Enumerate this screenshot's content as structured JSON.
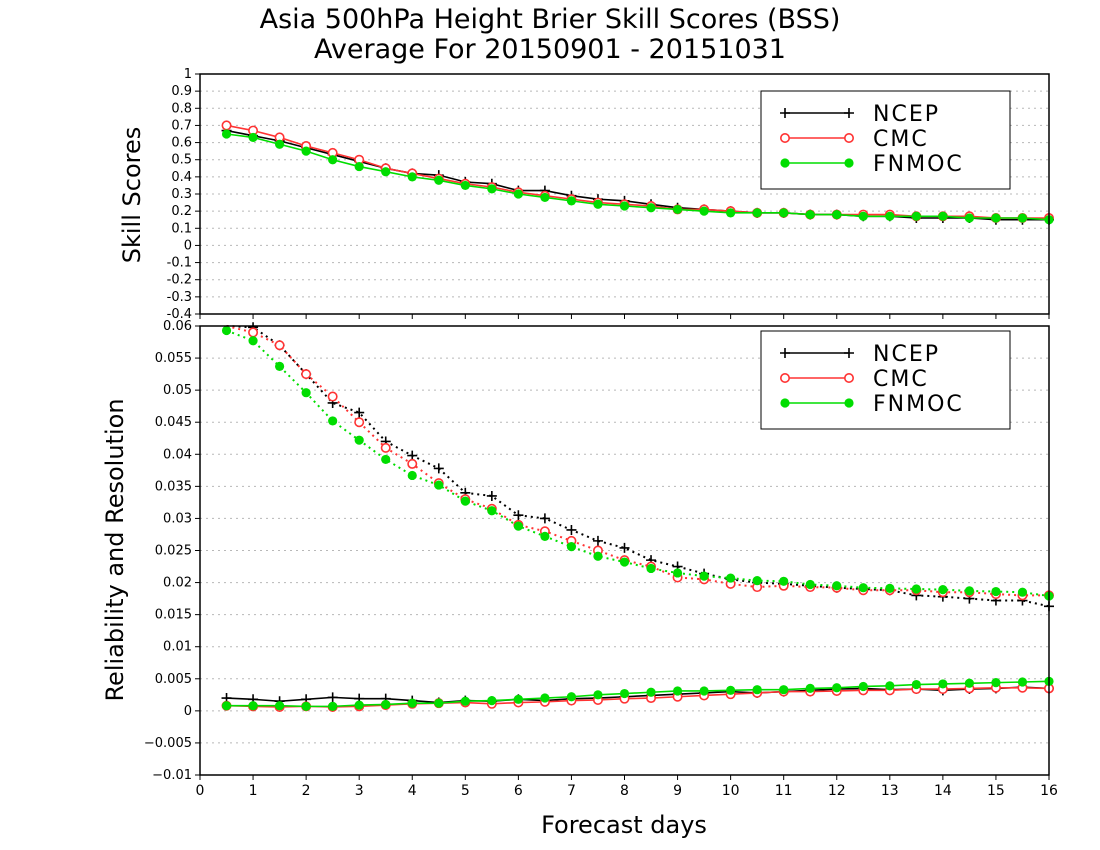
{
  "title": "Asia 500hPa Height Brier Skill Scores (BSS)",
  "subtitle": "Average For 20150901 - 20151031",
  "xlabel": "Forecast days",
  "legend_labels": [
    "NCEP",
    "CMC",
    "FNMOC"
  ],
  "colors": {
    "NCEP": "#000000",
    "CMC": "#ff3333",
    "FNMOC": "#00dd00"
  },
  "chart_data": [
    {
      "type": "line",
      "ylabel": "Skill Scores",
      "xlim": [
        0,
        16
      ],
      "ylim": [
        -0.4,
        1
      ],
      "xticks": [
        "0",
        "1",
        "2",
        "3",
        "4",
        "5",
        "6",
        "7",
        "8",
        "9",
        "10",
        "11",
        "12",
        "13",
        "14",
        "15",
        "16"
      ],
      "yticks": [
        "-0.4",
        "-0.3",
        "-0.2",
        "-0.1",
        "0",
        "0.1",
        "0.2",
        "0.3",
        "0.4",
        "0.5",
        "0.6",
        "0.7",
        "0.8",
        "0.9",
        "1"
      ],
      "grid": true,
      "legend_position": "top-right",
      "x": [
        0.5,
        1,
        1.5,
        2,
        2.5,
        3,
        3.5,
        4,
        4.5,
        5,
        5.5,
        6,
        6.5,
        7,
        7.5,
        8,
        8.5,
        9,
        9.5,
        10,
        10.5,
        11,
        11.5,
        12,
        12.5,
        13,
        13.5,
        14,
        14.5,
        15,
        15.5,
        16
      ],
      "series": [
        {
          "name": "NCEP",
          "marker": "plus",
          "values": [
            0.67,
            0.64,
            0.61,
            0.57,
            0.53,
            0.49,
            0.45,
            0.42,
            0.41,
            0.37,
            0.36,
            0.32,
            0.32,
            0.29,
            0.27,
            0.26,
            0.24,
            0.22,
            0.21,
            0.2,
            0.19,
            0.19,
            0.18,
            0.18,
            0.17,
            0.17,
            0.16,
            0.16,
            0.16,
            0.15,
            0.15,
            0.15
          ]
        },
        {
          "name": "CMC",
          "marker": "open-circle",
          "values": [
            0.7,
            0.67,
            0.63,
            0.58,
            0.54,
            0.5,
            0.45,
            0.42,
            0.39,
            0.36,
            0.34,
            0.31,
            0.29,
            0.27,
            0.25,
            0.24,
            0.23,
            0.21,
            0.21,
            0.2,
            0.19,
            0.19,
            0.18,
            0.18,
            0.18,
            0.18,
            0.17,
            0.17,
            0.17,
            0.16,
            0.16,
            0.16
          ]
        },
        {
          "name": "FNMOC",
          "marker": "filled-circle",
          "values": [
            0.65,
            0.63,
            0.59,
            0.55,
            0.5,
            0.46,
            0.43,
            0.4,
            0.38,
            0.35,
            0.33,
            0.3,
            0.28,
            0.26,
            0.24,
            0.23,
            0.22,
            0.21,
            0.2,
            0.19,
            0.19,
            0.19,
            0.18,
            0.18,
            0.17,
            0.17,
            0.17,
            0.17,
            0.16,
            0.16,
            0.16,
            0.15
          ]
        }
      ]
    },
    {
      "type": "line",
      "ylabel": "Reliability and Resolution",
      "xlim": [
        0,
        16
      ],
      "ylim": [
        -0.01,
        0.06
      ],
      "xticks": [
        "0",
        "1",
        "2",
        "3",
        "4",
        "5",
        "6",
        "7",
        "8",
        "9",
        "10",
        "11",
        "12",
        "13",
        "14",
        "15",
        "16"
      ],
      "yticks": [
        "−0.01",
        "−0.005",
        "0",
        "0.005",
        "0.01",
        "0.015",
        "0.02",
        "0.025",
        "0.03",
        "0.035",
        "0.04",
        "0.045",
        "0.05",
        "0.055",
        "0.06"
      ],
      "grid": true,
      "legend_position": "top-right",
      "x": [
        0.5,
        1,
        1.5,
        2,
        2.5,
        3,
        3.5,
        4,
        4.5,
        5,
        5.5,
        6,
        6.5,
        7,
        7.5,
        8,
        8.5,
        9,
        9.5,
        10,
        10.5,
        11,
        11.5,
        12,
        12.5,
        13,
        13.5,
        14,
        14.5,
        15,
        15.5,
        16
      ],
      "series": [
        {
          "name": "NCEP",
          "component": "resolution",
          "line": "dotted",
          "marker": "plus",
          "values": [
            0.0615,
            0.0598,
            0.057,
            0.0525,
            0.048,
            0.0465,
            0.042,
            0.0398,
            0.0378,
            0.034,
            0.0335,
            0.0305,
            0.03,
            0.0282,
            0.0265,
            0.0254,
            0.0235,
            0.0225,
            0.0214,
            0.0205,
            0.02,
            0.0198,
            0.0195,
            0.0192,
            0.019,
            0.0188,
            0.018,
            0.0178,
            0.0175,
            0.0172,
            0.0172,
            0.0163
          ]
        },
        {
          "name": "CMC",
          "component": "resolution",
          "line": "dotted",
          "marker": "open-circle",
          "values": [
            0.0612,
            0.059,
            0.057,
            0.0525,
            0.049,
            0.045,
            0.041,
            0.0385,
            0.0355,
            0.033,
            0.0315,
            0.029,
            0.028,
            0.0265,
            0.025,
            0.0235,
            0.0225,
            0.0208,
            0.0205,
            0.0198,
            0.0193,
            0.0195,
            0.0193,
            0.0192,
            0.0188,
            0.0188,
            0.0188,
            0.0185,
            0.0185,
            0.0182,
            0.018,
            0.018
          ]
        },
        {
          "name": "FNMOC",
          "component": "resolution",
          "line": "dotted",
          "marker": "filled-circle",
          "values": [
            0.0593,
            0.0577,
            0.0537,
            0.0496,
            0.0452,
            0.0422,
            0.0392,
            0.0367,
            0.0352,
            0.0327,
            0.0312,
            0.0288,
            0.0272,
            0.0256,
            0.0241,
            0.0232,
            0.0222,
            0.0215,
            0.021,
            0.0207,
            0.0203,
            0.0202,
            0.0197,
            0.0195,
            0.0192,
            0.0191,
            0.019,
            0.0189,
            0.0187,
            0.0186,
            0.0185,
            0.0179
          ]
        },
        {
          "name": "NCEP",
          "component": "reliability",
          "line": "solid",
          "marker": "plus",
          "values": [
            0.002,
            0.0018,
            0.0015,
            0.0018,
            0.0021,
            0.0019,
            0.0019,
            0.0016,
            0.0013,
            0.0016,
            0.0015,
            0.0018,
            0.0016,
            0.0019,
            0.002,
            0.0022,
            0.0024,
            0.0026,
            0.0028,
            0.003,
            0.0028,
            0.003,
            0.0032,
            0.0034,
            0.0035,
            0.0033,
            0.0034,
            0.0032,
            0.0034,
            0.0035,
            0.0037,
            0.0035
          ]
        },
        {
          "name": "CMC",
          "component": "reliability",
          "line": "solid",
          "marker": "open-circle",
          "values": [
            0.0008,
            0.0007,
            0.0006,
            0.0007,
            0.0006,
            0.0007,
            0.0009,
            0.0011,
            0.0012,
            0.0013,
            0.0011,
            0.0013,
            0.0014,
            0.0016,
            0.0017,
            0.0019,
            0.002,
            0.0022,
            0.0024,
            0.0026,
            0.0028,
            0.003,
            0.003,
            0.0031,
            0.0032,
            0.0032,
            0.0034,
            0.0034,
            0.0035,
            0.0036,
            0.0036,
            0.0035
          ]
        },
        {
          "name": "FNMOC",
          "component": "reliability",
          "line": "solid",
          "marker": "filled-circle",
          "values": [
            0.0008,
            0.0008,
            0.0008,
            0.0007,
            0.0007,
            0.0009,
            0.001,
            0.0012,
            0.0012,
            0.0015,
            0.0016,
            0.0018,
            0.002,
            0.0022,
            0.0025,
            0.0027,
            0.0029,
            0.0031,
            0.0031,
            0.0032,
            0.0033,
            0.0033,
            0.0035,
            0.0036,
            0.0038,
            0.0039,
            0.0041,
            0.0042,
            0.0043,
            0.0044,
            0.0045,
            0.0046
          ]
        }
      ]
    }
  ]
}
